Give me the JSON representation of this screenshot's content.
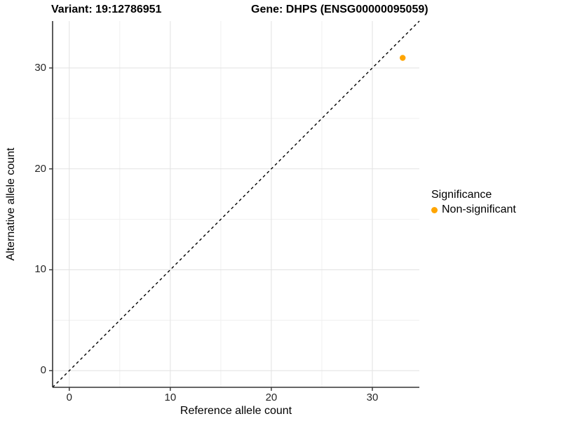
{
  "title": {
    "variant": "Variant: 19:12786951",
    "gene": "Gene: DHPS (ENSG00000095059)"
  },
  "axis": {
    "x": {
      "label": "Reference allele count",
      "tick_labels": [
        "0",
        "10",
        "20",
        "30"
      ]
    },
    "y": {
      "label": "Alternative allele count",
      "tick_labels": [
        "0",
        "10",
        "20",
        "30"
      ]
    }
  },
  "legend": {
    "title": "Significance",
    "items": [
      {
        "label": "Non-significant",
        "color": "#FFA500"
      }
    ]
  },
  "chart_data": {
    "type": "scatter",
    "title": "Variant: 19:12786951    Gene: DHPS (ENSG00000095059)",
    "xlabel": "Reference allele count",
    "ylabel": "Alternative allele count",
    "xlim": [
      -1.65,
      34.65
    ],
    "ylim": [
      -1.65,
      34.65
    ],
    "xticks": [
      0,
      10,
      20,
      30
    ],
    "yticks": [
      0,
      10,
      20,
      30
    ],
    "x_minor_ticks": [
      5,
      15,
      25
    ],
    "y_minor_ticks": [
      5,
      15,
      25
    ],
    "grid": true,
    "legend_position": "right",
    "series": [
      {
        "name": "Non-significant",
        "color": "#FFA500",
        "points": [
          {
            "x": 33,
            "y": 31
          }
        ]
      }
    ],
    "reference_line": {
      "type": "identity",
      "slope": 1,
      "intercept": 0,
      "style": "dashed",
      "color": "#000000"
    },
    "colors": {
      "point": "#FFA500",
      "grid_major": "#E2E2E2",
      "grid_minor": "#F0F0F0",
      "axis_line": "#333333",
      "tick": "#333333"
    }
  }
}
